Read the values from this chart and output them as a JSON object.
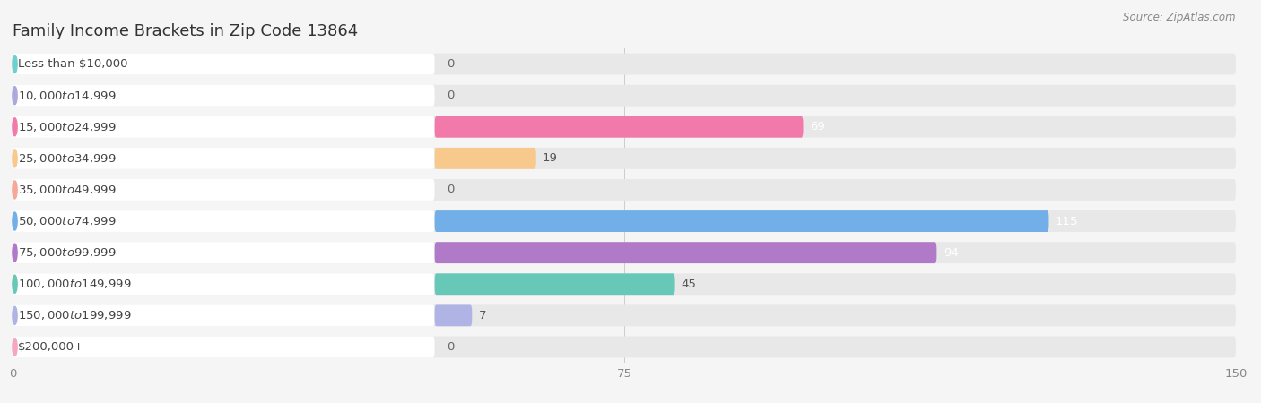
{
  "title": "Family Income Brackets in Zip Code 13864",
  "source": "Source: ZipAtlas.com",
  "categories": [
    "Less than $10,000",
    "$10,000 to $14,999",
    "$15,000 to $24,999",
    "$25,000 to $34,999",
    "$35,000 to $49,999",
    "$50,000 to $74,999",
    "$75,000 to $99,999",
    "$100,000 to $149,999",
    "$150,000 to $199,999",
    "$200,000+"
  ],
  "values": [
    0,
    0,
    69,
    19,
    0,
    115,
    94,
    45,
    7,
    0
  ],
  "bar_colors": [
    "#6dcfce",
    "#aba8dc",
    "#f27aaa",
    "#f8c98c",
    "#f5a898",
    "#72aee8",
    "#b07ac8",
    "#68c8b8",
    "#b0b4e4",
    "#f4a8c0"
  ],
  "xlim_max": 150,
  "xticks": [
    0,
    75,
    150
  ],
  "background_color": "#f5f5f5",
  "row_bg_color": "#e8e8e8",
  "label_box_color": "#ffffff",
  "title_fontsize": 13,
  "label_fontsize": 9.5,
  "value_fontsize": 9.5,
  "source_fontsize": 8.5
}
